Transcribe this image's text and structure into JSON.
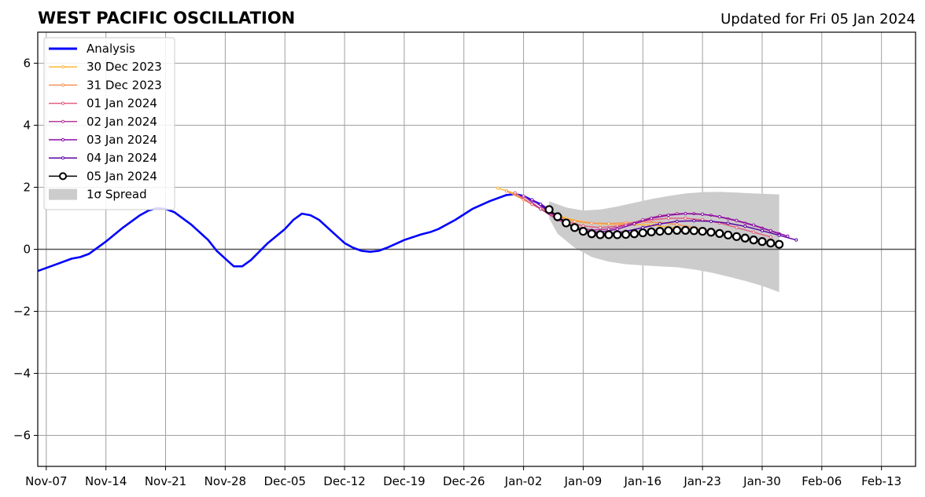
{
  "chart_data": {
    "type": "line",
    "title": "WEST PACIFIC OSCILLATION",
    "subtitle": "Updated for Fri 05 Jan 2024",
    "xlabel": "",
    "ylabel": "",
    "ylim": [
      -7,
      7
    ],
    "yticks": [
      {
        "value": -6,
        "label": "−6"
      },
      {
        "value": -4,
        "label": "−4"
      },
      {
        "value": -2,
        "label": "−2"
      },
      {
        "value": 0,
        "label": "0"
      },
      {
        "value": 2,
        "label": "2"
      },
      {
        "value": 4,
        "label": "4"
      },
      {
        "value": 6,
        "label": "6"
      }
    ],
    "xlim": [
      "2023-11-06",
      "2024-02-17"
    ],
    "xticks": [
      {
        "date": "2023-11-07",
        "label": "Nov-07"
      },
      {
        "date": "2023-11-14",
        "label": "Nov-14"
      },
      {
        "date": "2023-11-21",
        "label": "Nov-21"
      },
      {
        "date": "2023-11-28",
        "label": "Nov-28"
      },
      {
        "date": "2023-12-05",
        "label": "Dec-05"
      },
      {
        "date": "2023-12-12",
        "label": "Dec-12"
      },
      {
        "date": "2023-12-19",
        "label": "Dec-19"
      },
      {
        "date": "2023-12-26",
        "label": "Dec-26"
      },
      {
        "date": "2024-01-02",
        "label": "Jan-02"
      },
      {
        "date": "2024-01-09",
        "label": "Jan-09"
      },
      {
        "date": "2024-01-16",
        "label": "Jan-16"
      },
      {
        "date": "2024-01-23",
        "label": "Jan-23"
      },
      {
        "date": "2024-01-30",
        "label": "Jan-30"
      },
      {
        "date": "2024-02-06",
        "label": "Feb-06"
      },
      {
        "date": "2024-02-13",
        "label": "Feb-13"
      }
    ],
    "grid": true,
    "legend_position": "top-left",
    "analysis": {
      "name": "Analysis",
      "color": "#0000ff",
      "points": [
        [
          "2023-11-06",
          -0.7
        ],
        [
          "2023-11-08",
          -0.5
        ],
        [
          "2023-11-10",
          -0.3
        ],
        [
          "2023-11-11",
          -0.25
        ],
        [
          "2023-11-12",
          -0.15
        ],
        [
          "2023-11-14",
          0.25
        ],
        [
          "2023-11-16",
          0.7
        ],
        [
          "2023-11-18",
          1.1
        ],
        [
          "2023-11-19",
          1.25
        ],
        [
          "2023-11-20",
          1.33
        ],
        [
          "2023-11-21",
          1.3
        ],
        [
          "2023-11-22",
          1.2
        ],
        [
          "2023-11-24",
          0.8
        ],
        [
          "2023-11-26",
          0.3
        ],
        [
          "2023-11-27",
          -0.05
        ],
        [
          "2023-11-28",
          -0.3
        ],
        [
          "2023-11-29",
          -0.55
        ],
        [
          "2023-11-30",
          -0.55
        ],
        [
          "2023-12-01",
          -0.35
        ],
        [
          "2023-12-03",
          0.2
        ],
        [
          "2023-12-05",
          0.65
        ],
        [
          "2023-12-06",
          0.95
        ],
        [
          "2023-12-07",
          1.15
        ],
        [
          "2023-12-08",
          1.1
        ],
        [
          "2023-12-09",
          0.95
        ],
        [
          "2023-12-11",
          0.45
        ],
        [
          "2023-12-12",
          0.2
        ],
        [
          "2023-12-13",
          0.05
        ],
        [
          "2023-12-14",
          -0.05
        ],
        [
          "2023-12-15",
          -0.08
        ],
        [
          "2023-12-16",
          -0.05
        ],
        [
          "2023-12-17",
          0.05
        ],
        [
          "2023-12-19",
          0.3
        ],
        [
          "2023-12-21",
          0.48
        ],
        [
          "2023-12-22",
          0.55
        ],
        [
          "2023-12-23",
          0.65
        ],
        [
          "2023-12-25",
          0.95
        ],
        [
          "2023-12-27",
          1.3
        ],
        [
          "2023-12-29",
          1.55
        ],
        [
          "2023-12-31",
          1.75
        ],
        [
          "2024-01-01",
          1.78
        ],
        [
          "2024-01-02",
          1.72
        ],
        [
          "2024-01-03",
          1.58
        ],
        [
          "2024-01-04",
          1.45
        ],
        [
          "2024-01-05",
          1.25
        ],
        [
          "2024-01-06",
          1.05
        ]
      ]
    },
    "forecasts": [
      {
        "name": "30 Dec 2023",
        "color": "#ffb733",
        "points": [
          [
            "2023-12-30",
            1.97
          ],
          [
            "2024-01-01",
            1.8
          ],
          [
            "2024-01-03",
            1.45
          ],
          [
            "2024-01-05",
            1.2
          ],
          [
            "2024-01-07",
            1.0
          ],
          [
            "2024-01-09",
            0.88
          ],
          [
            "2024-01-11",
            0.82
          ],
          [
            "2024-01-13",
            0.8
          ],
          [
            "2024-01-15",
            0.8
          ],
          [
            "2024-01-17",
            0.78
          ],
          [
            "2024-01-19",
            0.72
          ],
          [
            "2024-01-21",
            0.66
          ],
          [
            "2024-01-23",
            0.58
          ],
          [
            "2024-01-25",
            0.48
          ],
          [
            "2024-01-27",
            0.38
          ],
          [
            "2024-01-29",
            0.28
          ]
        ]
      },
      {
        "name": "31 Dec 2023",
        "color": "#f59352",
        "points": [
          [
            "2023-12-31",
            1.88
          ],
          [
            "2024-01-02",
            1.6
          ],
          [
            "2024-01-04",
            1.3
          ],
          [
            "2024-01-06",
            1.05
          ],
          [
            "2024-01-08",
            0.9
          ],
          [
            "2024-01-10",
            0.84
          ],
          [
            "2024-01-12",
            0.83
          ],
          [
            "2024-01-14",
            0.85
          ],
          [
            "2024-01-16",
            0.88
          ],
          [
            "2024-01-18",
            0.86
          ],
          [
            "2024-01-20",
            0.8
          ],
          [
            "2024-01-22",
            0.7
          ],
          [
            "2024-01-24",
            0.58
          ],
          [
            "2024-01-26",
            0.46
          ],
          [
            "2024-01-28",
            0.34
          ],
          [
            "2024-01-30",
            0.24
          ]
        ]
      },
      {
        "name": "01 Jan 2024",
        "color": "#e0607e",
        "points": [
          [
            "2024-01-01",
            1.82
          ],
          [
            "2024-01-03",
            1.45
          ],
          [
            "2024-01-05",
            1.15
          ],
          [
            "2024-01-07",
            0.9
          ],
          [
            "2024-01-09",
            0.75
          ],
          [
            "2024-01-11",
            0.7
          ],
          [
            "2024-01-13",
            0.75
          ],
          [
            "2024-01-15",
            0.85
          ],
          [
            "2024-01-17",
            0.95
          ],
          [
            "2024-01-19",
            1.0
          ],
          [
            "2024-01-21",
            1.0
          ],
          [
            "2024-01-23",
            0.95
          ],
          [
            "2024-01-25",
            0.85
          ],
          [
            "2024-01-27",
            0.7
          ],
          [
            "2024-01-29",
            0.55
          ],
          [
            "2024-01-31",
            0.4
          ]
        ]
      },
      {
        "name": "02 Jan 2024",
        "color": "#b23a9a",
        "points": [
          [
            "2024-01-02",
            1.72
          ],
          [
            "2024-01-04",
            1.3
          ],
          [
            "2024-01-06",
            0.95
          ],
          [
            "2024-01-08",
            0.72
          ],
          [
            "2024-01-10",
            0.62
          ],
          [
            "2024-01-12",
            0.65
          ],
          [
            "2024-01-14",
            0.78
          ],
          [
            "2024-01-16",
            0.95
          ],
          [
            "2024-01-18",
            1.08
          ],
          [
            "2024-01-20",
            1.15
          ],
          [
            "2024-01-22",
            1.15
          ],
          [
            "2024-01-24",
            1.1
          ],
          [
            "2024-01-26",
            0.98
          ],
          [
            "2024-01-28",
            0.84
          ],
          [
            "2024-01-30",
            0.68
          ],
          [
            "2024-02-01",
            0.5
          ]
        ]
      },
      {
        "name": "03 Jan 2024",
        "color": "#8b0aa5",
        "points": [
          [
            "2024-01-03",
            1.6
          ],
          [
            "2024-01-05",
            1.2
          ],
          [
            "2024-01-07",
            0.85
          ],
          [
            "2024-01-09",
            0.6
          ],
          [
            "2024-01-11",
            0.55
          ],
          [
            "2024-01-13",
            0.65
          ],
          [
            "2024-01-15",
            0.82
          ],
          [
            "2024-01-17",
            1.0
          ],
          [
            "2024-01-19",
            1.1
          ],
          [
            "2024-01-21",
            1.15
          ],
          [
            "2024-01-23",
            1.13
          ],
          [
            "2024-01-25",
            1.05
          ],
          [
            "2024-01-27",
            0.93
          ],
          [
            "2024-01-29",
            0.78
          ],
          [
            "2024-01-31",
            0.6
          ],
          [
            "2024-02-02",
            0.42
          ]
        ]
      },
      {
        "name": "04 Jan 2024",
        "color": "#5b02a3",
        "points": [
          [
            "2024-01-04",
            1.45
          ],
          [
            "2024-01-06",
            1.05
          ],
          [
            "2024-01-08",
            0.7
          ],
          [
            "2024-01-10",
            0.52
          ],
          [
            "2024-01-12",
            0.5
          ],
          [
            "2024-01-14",
            0.58
          ],
          [
            "2024-01-16",
            0.7
          ],
          [
            "2024-01-18",
            0.82
          ],
          [
            "2024-01-20",
            0.9
          ],
          [
            "2024-01-22",
            0.92
          ],
          [
            "2024-01-24",
            0.9
          ],
          [
            "2024-01-26",
            0.84
          ],
          [
            "2024-01-28",
            0.74
          ],
          [
            "2024-01-30",
            0.6
          ],
          [
            "2024-02-01",
            0.45
          ],
          [
            "2024-02-03",
            0.3
          ]
        ]
      },
      {
        "name": "05 Jan 2024",
        "color": "#000000",
        "points": [
          [
            "2024-01-05",
            1.28
          ],
          [
            "2024-01-06",
            1.05
          ],
          [
            "2024-01-07",
            0.85
          ],
          [
            "2024-01-08",
            0.7
          ],
          [
            "2024-01-09",
            0.58
          ],
          [
            "2024-01-10",
            0.5
          ],
          [
            "2024-01-11",
            0.47
          ],
          [
            "2024-01-12",
            0.47
          ],
          [
            "2024-01-13",
            0.47
          ],
          [
            "2024-01-14",
            0.48
          ],
          [
            "2024-01-15",
            0.5
          ],
          [
            "2024-01-16",
            0.53
          ],
          [
            "2024-01-17",
            0.56
          ],
          [
            "2024-01-18",
            0.58
          ],
          [
            "2024-01-19",
            0.6
          ],
          [
            "2024-01-20",
            0.61
          ],
          [
            "2024-01-21",
            0.61
          ],
          [
            "2024-01-22",
            0.6
          ],
          [
            "2024-01-23",
            0.58
          ],
          [
            "2024-01-24",
            0.55
          ],
          [
            "2024-01-25",
            0.51
          ],
          [
            "2024-01-26",
            0.46
          ],
          [
            "2024-01-27",
            0.41
          ],
          [
            "2024-01-28",
            0.36
          ],
          [
            "2024-01-29",
            0.3
          ],
          [
            "2024-01-30",
            0.25
          ],
          [
            "2024-01-31",
            0.2
          ],
          [
            "2024-02-01",
            0.16
          ]
        ]
      }
    ],
    "spread": {
      "name": "1σ Spread",
      "color": "#cccccc",
      "upper": [
        [
          "2024-01-05",
          1.55
        ],
        [
          "2024-01-07",
          1.35
        ],
        [
          "2024-01-09",
          1.25
        ],
        [
          "2024-01-11",
          1.28
        ],
        [
          "2024-01-13",
          1.38
        ],
        [
          "2024-01-15",
          1.5
        ],
        [
          "2024-01-17",
          1.62
        ],
        [
          "2024-01-19",
          1.72
        ],
        [
          "2024-01-21",
          1.8
        ],
        [
          "2024-01-23",
          1.84
        ],
        [
          "2024-01-25",
          1.85
        ],
        [
          "2024-01-27",
          1.83
        ],
        [
          "2024-01-29",
          1.8
        ],
        [
          "2024-01-31",
          1.78
        ],
        [
          "2024-02-01",
          1.77
        ]
      ],
      "lower": [
        [
          "2024-01-05",
          1.0
        ],
        [
          "2024-01-06",
          0.5
        ],
        [
          "2024-01-08",
          0.05
        ],
        [
          "2024-01-10",
          -0.25
        ],
        [
          "2024-01-12",
          -0.4
        ],
        [
          "2024-01-14",
          -0.48
        ],
        [
          "2024-01-16",
          -0.52
        ],
        [
          "2024-01-18",
          -0.55
        ],
        [
          "2024-01-20",
          -0.58
        ],
        [
          "2024-01-22",
          -0.65
        ],
        [
          "2024-01-24",
          -0.75
        ],
        [
          "2024-01-26",
          -0.88
        ],
        [
          "2024-01-28",
          -1.02
        ],
        [
          "2024-01-30",
          -1.18
        ],
        [
          "2024-02-01",
          -1.38
        ]
      ]
    }
  }
}
